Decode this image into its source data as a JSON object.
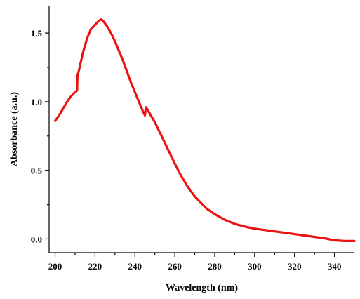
{
  "chart_data": {
    "type": "line",
    "xlabel": "Wavelength (nm)",
    "ylabel": "Absorbance (a.u.)",
    "xlim": [
      197,
      350
    ],
    "ylim": [
      -0.1,
      1.7
    ],
    "xticks": [
      200,
      220,
      240,
      260,
      280,
      300,
      320,
      340
    ],
    "xtick_labels": [
      "200",
      "220",
      "240",
      "260",
      "280",
      "300",
      "320",
      "340"
    ],
    "xminor": [
      210,
      230,
      250,
      270,
      290,
      310,
      330
    ],
    "yticks": [
      0.0,
      0.5,
      1.0,
      1.5
    ],
    "ytick_labels": [
      "0.0",
      "0.5",
      "1.0",
      "1.5"
    ],
    "yminor": [
      0.25,
      0.75,
      1.25
    ],
    "grid": false,
    "color": "#ee1111",
    "series": [
      {
        "x": [
          200,
          202,
          204,
          206,
          208,
          210,
          211,
          211.2,
          212,
          214,
          216,
          218,
          220,
          222,
          223,
          224,
          225,
          226,
          228,
          230,
          232,
          234,
          236,
          238,
          240,
          242,
          244,
          245,
          245.5,
          246,
          248,
          250,
          252,
          254,
          256,
          258,
          260,
          262,
          264,
          266,
          268,
          270,
          272,
          274,
          276,
          278,
          280,
          285,
          290,
          295,
          300,
          305,
          310,
          315,
          320,
          325,
          330,
          335,
          340,
          345,
          350
        ],
        "y": [
          0.86,
          0.9,
          0.95,
          1.0,
          1.04,
          1.07,
          1.08,
          1.19,
          1.23,
          1.36,
          1.46,
          1.53,
          1.56,
          1.59,
          1.6,
          1.59,
          1.57,
          1.55,
          1.5,
          1.44,
          1.37,
          1.3,
          1.22,
          1.14,
          1.07,
          1.0,
          0.93,
          0.9,
          0.96,
          0.95,
          0.9,
          0.85,
          0.79,
          0.73,
          0.67,
          0.61,
          0.55,
          0.49,
          0.44,
          0.39,
          0.35,
          0.31,
          0.28,
          0.25,
          0.22,
          0.2,
          0.18,
          0.14,
          0.11,
          0.09,
          0.075,
          0.065,
          0.055,
          0.045,
          0.035,
          0.025,
          0.015,
          0.005,
          -0.01,
          -0.015,
          -0.015
        ]
      }
    ]
  }
}
